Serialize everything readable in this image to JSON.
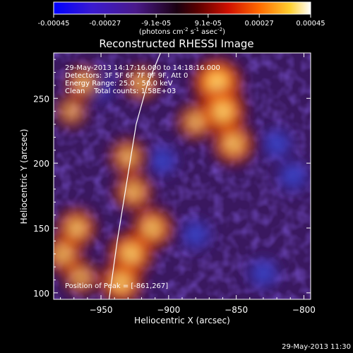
{
  "colorbar": {
    "ticks": [
      "-0.00045",
      "-0.00027",
      "-9.1e-05",
      "9.1e-05",
      "0.00027",
      "0.00045"
    ],
    "units_main": "(photons cm",
    "units_sup1": "-2",
    "units_mid": " s",
    "units_sup2": "-1",
    "units_tail": " asec",
    "units_sup3": "-2",
    "units_close": ")",
    "range": [
      -0.00045,
      0.00045
    ]
  },
  "chart_data": {
    "type": "heatmap",
    "title": "Reconstructed RHESSI Image",
    "xlabel": "Heliocentric X (arcsec)",
    "ylabel": "Heliocentric Y (arcsec)",
    "xlim": [
      -985,
      -795
    ],
    "ylim": [
      95,
      285
    ],
    "xticks": [
      -950,
      -900,
      -850,
      -800
    ],
    "yticks": [
      100,
      150,
      200,
      250
    ],
    "annotations": [
      "29-May-2013 14:17:16.000 to 14:18:16.000",
      "Detectors: 3F 5F 6F 7F 8F 9F, Att 0",
      "Energy Range: 25.0 - 50.0 keV",
      "Clean    Total counts: 1.58E+03"
    ],
    "peak_label": "Position of Peak = [-861,267]",
    "peak_position": [
      -861,
      267
    ],
    "limb_x": [
      -944,
      -938,
      -931,
      -924,
      -916,
      -906
    ],
    "limb_y": [
      95,
      140,
      185,
      230,
      260,
      285
    ],
    "bright_regions": [
      {
        "x": -864,
        "y": 262,
        "level": 1.0
      },
      {
        "x": -860,
        "y": 240,
        "level": 0.9
      },
      {
        "x": -852,
        "y": 215,
        "level": 0.75
      },
      {
        "x": -880,
        "y": 232,
        "level": 0.6
      },
      {
        "x": -920,
        "y": 262,
        "level": 0.55
      },
      {
        "x": -930,
        "y": 205,
        "level": 0.6
      },
      {
        "x": -926,
        "y": 178,
        "level": 0.65
      },
      {
        "x": -912,
        "y": 150,
        "level": 0.75
      },
      {
        "x": -928,
        "y": 130,
        "level": 0.85
      },
      {
        "x": -935,
        "y": 108,
        "level": 0.8
      },
      {
        "x": -968,
        "y": 150,
        "level": 0.7
      },
      {
        "x": -978,
        "y": 130,
        "level": 0.65
      },
      {
        "x": -965,
        "y": 112,
        "level": 0.55
      },
      {
        "x": -963,
        "y": 262,
        "level": 0.55
      },
      {
        "x": -972,
        "y": 240,
        "level": 0.45
      }
    ],
    "dark_regions": [
      {
        "x": -952,
        "y": 258
      },
      {
        "x": -820,
        "y": 215
      },
      {
        "x": -808,
        "y": 190
      },
      {
        "x": -905,
        "y": 202
      },
      {
        "x": -880,
        "y": 145
      },
      {
        "x": -830,
        "y": 115
      }
    ]
  },
  "footer": {
    "timestamp": "29-May-2013 11:30"
  }
}
